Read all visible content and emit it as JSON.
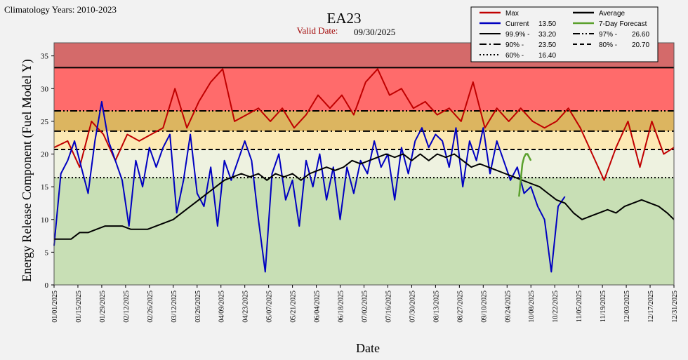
{
  "chart_data": {
    "type": "line",
    "title": "EA23",
    "climatology": "Climatology Years: 2010-2023",
    "valid_date_label": "Valid Date:",
    "valid_date": "09/30/2025",
    "xlabel": "Date",
    "ylabel": "Energy Release Component (Fuel Model Y)",
    "ylim": [
      0,
      37
    ],
    "yticks": [
      0,
      5,
      10,
      15,
      20,
      25,
      30,
      35
    ],
    "x_range_days": [
      0,
      364
    ],
    "xtick_labels": [
      "01/01/2025",
      "01/15/2025",
      "01/29/2025",
      "02/12/2025",
      "02/26/2025",
      "03/12/2025",
      "03/26/2025",
      "04/09/2025",
      "04/23/2025",
      "05/07/2025",
      "05/21/2025",
      "06/04/2025",
      "06/18/2025",
      "07/02/2025",
      "07/16/2025",
      "07/30/2025",
      "08/13/2025",
      "08/27/2025",
      "09/10/2025",
      "09/24/2025",
      "10/08/2025",
      "10/22/2025",
      "11/05/2025",
      "11/19/2025",
      "12/03/2025",
      "12/17/2025",
      "12/31/2025"
    ],
    "bands": [
      {
        "from": 33.2,
        "to": 37,
        "color": "#d46a6a"
      },
      {
        "from": 26.6,
        "to": 33.2,
        "color": "#ff6b6b"
      },
      {
        "from": 23.5,
        "to": 26.6,
        "color": "#dcb560"
      },
      {
        "from": 20.7,
        "to": 23.5,
        "color": "#fce9b4"
      },
      {
        "from": 16.4,
        "to": 20.7,
        "color": "#eef2e0"
      },
      {
        "from": 0,
        "to": 16.4,
        "color": "#c8dfb5"
      }
    ],
    "thresholds": [
      {
        "name": "99.9%",
        "value": 33.2,
        "style": "solid"
      },
      {
        "name": "97%",
        "value": 26.6,
        "style": "dashdotdot"
      },
      {
        "name": "90%",
        "value": 23.5,
        "style": "dashdot"
      },
      {
        "name": "80%",
        "value": 20.7,
        "style": "dashed"
      },
      {
        "name": "60%",
        "value": 16.4,
        "style": "dotted"
      }
    ],
    "series": [
      {
        "name": "Max",
        "color": "#c00000",
        "points": [
          [
            0,
            21
          ],
          [
            8,
            22
          ],
          [
            15,
            18
          ],
          [
            22,
            25
          ],
          [
            29,
            23
          ],
          [
            36,
            19
          ],
          [
            43,
            23
          ],
          [
            50,
            22
          ],
          [
            57,
            23
          ],
          [
            64,
            24
          ],
          [
            71,
            30
          ],
          [
            78,
            24
          ],
          [
            85,
            28
          ],
          [
            92,
            31
          ],
          [
            99,
            33
          ],
          [
            106,
            25
          ],
          [
            113,
            26
          ],
          [
            120,
            27
          ],
          [
            127,
            25
          ],
          [
            134,
            27
          ],
          [
            141,
            24
          ],
          [
            148,
            26
          ],
          [
            155,
            29
          ],
          [
            162,
            27
          ],
          [
            169,
            29
          ],
          [
            176,
            26
          ],
          [
            183,
            31
          ],
          [
            190,
            33
          ],
          [
            197,
            29
          ],
          [
            204,
            30
          ],
          [
            211,
            27
          ],
          [
            218,
            28
          ],
          [
            225,
            26
          ],
          [
            232,
            27
          ],
          [
            239,
            25
          ],
          [
            246,
            31
          ],
          [
            253,
            24
          ],
          [
            260,
            27
          ],
          [
            267,
            25
          ],
          [
            274,
            27
          ],
          [
            281,
            25
          ],
          [
            288,
            24
          ],
          [
            295,
            25
          ],
          [
            302,
            27
          ],
          [
            309,
            24
          ],
          [
            316,
            20
          ],
          [
            323,
            16
          ],
          [
            330,
            21
          ],
          [
            337,
            25
          ],
          [
            344,
            18
          ],
          [
            351,
            25
          ],
          [
            358,
            20
          ],
          [
            364,
            21
          ]
        ]
      },
      {
        "name": "Current",
        "value_label": "13.50",
        "color": "#0000c0",
        "points": [
          [
            0,
            6
          ],
          [
            4,
            17
          ],
          [
            8,
            19
          ],
          [
            12,
            22
          ],
          [
            16,
            18
          ],
          [
            20,
            14
          ],
          [
            24,
            22
          ],
          [
            28,
            28
          ],
          [
            32,
            22
          ],
          [
            36,
            19
          ],
          [
            40,
            16
          ],
          [
            44,
            9
          ],
          [
            48,
            19
          ],
          [
            52,
            15
          ],
          [
            56,
            21
          ],
          [
            60,
            18
          ],
          [
            64,
            21
          ],
          [
            68,
            23
          ],
          [
            72,
            11
          ],
          [
            76,
            16
          ],
          [
            80,
            23
          ],
          [
            84,
            14
          ],
          [
            88,
            12
          ],
          [
            92,
            18
          ],
          [
            96,
            9
          ],
          [
            100,
            19
          ],
          [
            104,
            16
          ],
          [
            108,
            19
          ],
          [
            112,
            22
          ],
          [
            116,
            19
          ],
          [
            120,
            10
          ],
          [
            124,
            2
          ],
          [
            128,
            17
          ],
          [
            132,
            20
          ],
          [
            136,
            13
          ],
          [
            140,
            16
          ],
          [
            144,
            9
          ],
          [
            148,
            19
          ],
          [
            152,
            15
          ],
          [
            156,
            20
          ],
          [
            160,
            13
          ],
          [
            164,
            18
          ],
          [
            168,
            10
          ],
          [
            172,
            18
          ],
          [
            176,
            14
          ],
          [
            180,
            19
          ],
          [
            184,
            17
          ],
          [
            188,
            22
          ],
          [
            192,
            18
          ],
          [
            196,
            20
          ],
          [
            200,
            13
          ],
          [
            204,
            21
          ],
          [
            208,
            17
          ],
          [
            212,
            22
          ],
          [
            216,
            24
          ],
          [
            220,
            21
          ],
          [
            224,
            23
          ],
          [
            228,
            22
          ],
          [
            232,
            18
          ],
          [
            236,
            24
          ],
          [
            240,
            15
          ],
          [
            244,
            22
          ],
          [
            248,
            19
          ],
          [
            252,
            24
          ],
          [
            256,
            17
          ],
          [
            260,
            22
          ],
          [
            264,
            19
          ],
          [
            268,
            16
          ],
          [
            272,
            18
          ],
          [
            276,
            14
          ],
          [
            280,
            15
          ],
          [
            284,
            12
          ],
          [
            288,
            10
          ],
          [
            290,
            6
          ],
          [
            292,
            2
          ],
          [
            296,
            12
          ],
          [
            300,
            13.5
          ]
        ]
      },
      {
        "name": "Average",
        "color": "#000000",
        "points": [
          [
            0,
            7
          ],
          [
            5,
            7
          ],
          [
            10,
            7
          ],
          [
            15,
            8
          ],
          [
            20,
            8
          ],
          [
            25,
            8.5
          ],
          [
            30,
            9
          ],
          [
            35,
            9
          ],
          [
            40,
            9
          ],
          [
            45,
            8.5
          ],
          [
            50,
            8.5
          ],
          [
            55,
            8.5
          ],
          [
            60,
            9
          ],
          [
            65,
            9.5
          ],
          [
            70,
            10
          ],
          [
            75,
            11
          ],
          [
            80,
            12
          ],
          [
            85,
            13
          ],
          [
            90,
            14
          ],
          [
            95,
            15
          ],
          [
            100,
            16
          ],
          [
            105,
            16.5
          ],
          [
            110,
            17
          ],
          [
            115,
            16.5
          ],
          [
            120,
            17
          ],
          [
            125,
            16
          ],
          [
            130,
            17
          ],
          [
            135,
            16.5
          ],
          [
            140,
            17
          ],
          [
            145,
            16
          ],
          [
            150,
            17
          ],
          [
            155,
            17.5
          ],
          [
            160,
            18
          ],
          [
            165,
            17.5
          ],
          [
            170,
            18
          ],
          [
            175,
            19
          ],
          [
            180,
            18.5
          ],
          [
            185,
            19
          ],
          [
            190,
            19.5
          ],
          [
            195,
            20
          ],
          [
            200,
            19.5
          ],
          [
            205,
            20
          ],
          [
            210,
            19
          ],
          [
            215,
            20
          ],
          [
            220,
            19
          ],
          [
            225,
            20
          ],
          [
            230,
            19.5
          ],
          [
            235,
            20
          ],
          [
            240,
            19
          ],
          [
            245,
            18
          ],
          [
            250,
            18.5
          ],
          [
            255,
            18
          ],
          [
            260,
            17.5
          ],
          [
            265,
            17
          ],
          [
            270,
            16.5
          ],
          [
            275,
            16
          ],
          [
            280,
            15.5
          ],
          [
            285,
            15
          ],
          [
            290,
            14
          ],
          [
            295,
            13
          ],
          [
            300,
            12.5
          ],
          [
            305,
            11
          ],
          [
            310,
            10
          ],
          [
            315,
            10.5
          ],
          [
            320,
            11
          ],
          [
            325,
            11.5
          ],
          [
            330,
            11
          ],
          [
            335,
            12
          ],
          [
            340,
            12.5
          ],
          [
            345,
            13
          ],
          [
            350,
            12.5
          ],
          [
            355,
            12
          ],
          [
            360,
            11
          ],
          [
            364,
            10
          ]
        ]
      },
      {
        "name": "7-Day Forecast",
        "color": "#5aa02c",
        "points": [
          [
            273,
            13.5
          ],
          [
            274,
            16
          ],
          [
            275,
            18.5
          ],
          [
            276,
            19.5
          ],
          [
            277,
            20
          ],
          [
            278,
            20
          ],
          [
            279,
            19.5
          ],
          [
            280,
            19
          ]
        ]
      }
    ]
  },
  "legend": [
    {
      "label": "Max",
      "value": "",
      "style": "solid",
      "color": "#c00000"
    },
    {
      "label": "Average",
      "value": "",
      "style": "solid",
      "color": "#000000"
    },
    {
      "label": "Current",
      "value": "13.50",
      "style": "solid",
      "color": "#0000c0"
    },
    {
      "label": "7-Day Forecast",
      "value": "",
      "style": "solid",
      "color": "#5aa02c"
    },
    {
      "label": "99.9% -",
      "value": "33.20",
      "style": "solid",
      "color": "#000000"
    },
    {
      "label": "97% -",
      "value": "26.60",
      "style": "dashdotdot",
      "color": "#000000"
    },
    {
      "label": "90% -",
      "value": "23.50",
      "style": "dashdot",
      "color": "#000000"
    },
    {
      "label": "80% -",
      "value": "20.70",
      "style": "dashed",
      "color": "#000000"
    },
    {
      "label": "60% -",
      "value": "16.40",
      "style": "dotted",
      "color": "#000000"
    }
  ]
}
